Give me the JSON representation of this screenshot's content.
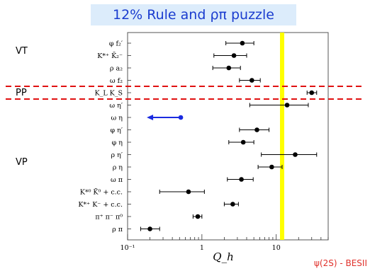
{
  "title": "12% Rule and ρπ puzzle",
  "group_labels": [
    "VT",
    "PP",
    "VP"
  ],
  "source_label": "ψ(2S) - BESII",
  "chart_data": {
    "type": "scatter",
    "title": "12% Rule and ρπ puzzle",
    "xlabel": "Q_h",
    "xscale": "log",
    "xlim": [
      0.1,
      50
    ],
    "xticks": [
      {
        "value": 0.1,
        "label": "10⁻¹"
      },
      {
        "value": 1,
        "label": "1"
      },
      {
        "value": 10,
        "label": "10"
      }
    ],
    "reference_line": {
      "x": 12,
      "color": "#ffff00"
    },
    "band_lines_around": "K_L K_S",
    "channels": [
      {
        "label": "φ f₂′",
        "group": "VT",
        "value": 3.5,
        "low": 2.1,
        "high": 5.0
      },
      {
        "label": "K*⁺ K̄₂⁻",
        "group": "VT",
        "value": 2.7,
        "low": 1.45,
        "high": 4.0
      },
      {
        "label": "ρ a₂",
        "group": "VT",
        "value": 2.3,
        "low": 1.4,
        "high": 3.3
      },
      {
        "label": "ω f₂",
        "group": "VT",
        "value": 4.7,
        "low": 3.2,
        "high": 6.1
      },
      {
        "label": "K_L K_S",
        "group": "PP",
        "value": 30,
        "low": 26,
        "high": 35
      },
      {
        "label": "ω η′",
        "group": "VP",
        "value": 14,
        "low": 4.4,
        "high": 27
      },
      {
        "label": "ω η",
        "group": "VP",
        "upper_limit": 0.52
      },
      {
        "label": "φ η′",
        "group": "VP",
        "value": 5.5,
        "low": 3.2,
        "high": 8.0
      },
      {
        "label": "φ η",
        "group": "VP",
        "value": 3.6,
        "low": 2.3,
        "high": 5.0
      },
      {
        "label": "ρ η′",
        "group": "VP",
        "value": 18,
        "low": 6.3,
        "high": 35
      },
      {
        "label": "ρ η",
        "group": "VP",
        "value": 8.7,
        "low": 5.7,
        "high": 12
      },
      {
        "label": "ω π",
        "group": "VP",
        "value": 3.4,
        "low": 2.2,
        "high": 4.9
      },
      {
        "label": "K*⁰ K̄⁰ + c.c.",
        "group": "VP",
        "value": 0.66,
        "low": 0.27,
        "high": 1.08
      },
      {
        "label": "K*⁺ K⁻ + c.c.",
        "group": "VP",
        "value": 2.6,
        "low": 2.0,
        "high": 3.1
      },
      {
        "label": "π⁺ π⁻ π⁰",
        "group": "VP",
        "value": 0.88,
        "low": 0.76,
        "high": 1.0
      },
      {
        "label": "ρ π",
        "group": "VP",
        "value": 0.2,
        "low": 0.15,
        "high": 0.27
      }
    ]
  }
}
